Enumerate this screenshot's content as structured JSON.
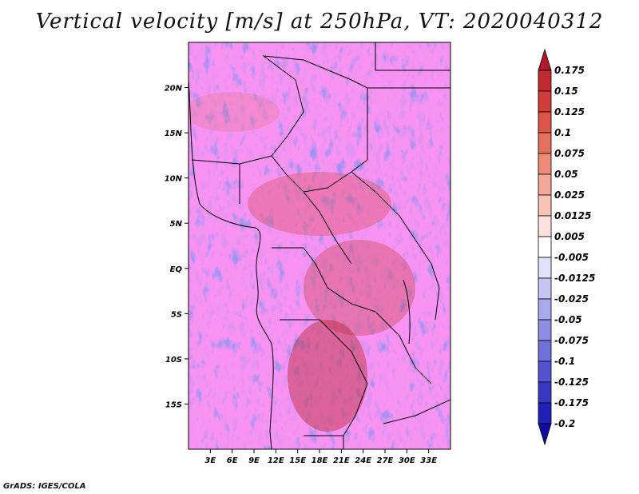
{
  "title": "Vertical velocity [m/s] at 250hPa, VT: 2020040312",
  "credit": "GrADS: IGES/COLA",
  "map": {
    "lon_range": [
      0,
      36
    ],
    "lat_range": [
      -20,
      25
    ],
    "lat_labels": [
      {
        "text": "20N",
        "lat": 20
      },
      {
        "text": "15N",
        "lat": 15
      },
      {
        "text": "10N",
        "lat": 10
      },
      {
        "text": "5N",
        "lat": 5
      },
      {
        "text": "EQ",
        "lat": 0
      },
      {
        "text": "5S",
        "lat": -5
      },
      {
        "text": "10S",
        "lat": -10
      },
      {
        "text": "15S",
        "lat": -15
      }
    ],
    "lon_labels": [
      {
        "text": "3E",
        "lon": 3
      },
      {
        "text": "6E",
        "lon": 6
      },
      {
        "text": "9E",
        "lon": 9
      },
      {
        "text": "12E",
        "lon": 12
      },
      {
        "text": "15E",
        "lon": 15
      },
      {
        "text": "18E",
        "lon": 18
      },
      {
        "text": "21E",
        "lon": 21
      },
      {
        "text": "24E",
        "lon": 24
      },
      {
        "text": "27E",
        "lon": 27
      },
      {
        "text": "30E",
        "lon": 30
      },
      {
        "text": "33E",
        "lon": 33
      }
    ]
  },
  "colorbar": {
    "levels": [
      "0.175",
      "0.15",
      "0.125",
      "0.1",
      "0.075",
      "0.05",
      "0.025",
      "0.0125",
      "0.005",
      "-0.005",
      "-0.0125",
      "-0.025",
      "-0.05",
      "-0.075",
      "-0.1",
      "-0.125",
      "-0.175",
      "-0.2"
    ],
    "colors": [
      "#b2182b",
      "#c12a30",
      "#cf3c3a",
      "#db5448",
      "#e5705c",
      "#ee8b78",
      "#f4a898",
      "#f8c4b8",
      "#fce2dc",
      "#ffffff",
      "#e2e2fb",
      "#c6c6f5",
      "#a9a9ee",
      "#8d8de6",
      "#7070dd",
      "#5353d2",
      "#3838c4",
      "#2020b4",
      "#0d0da0"
    ]
  }
}
